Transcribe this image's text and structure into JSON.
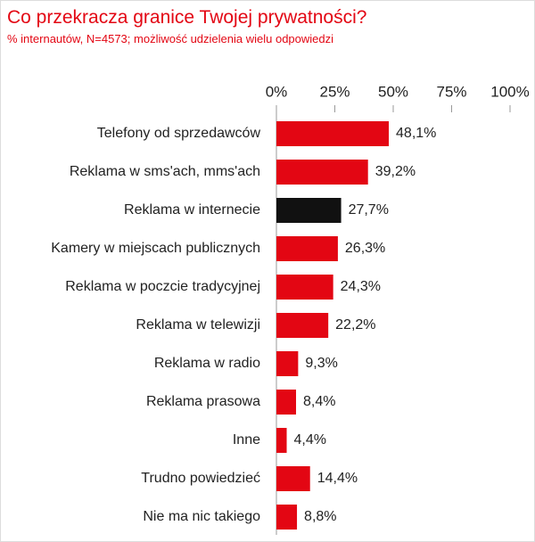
{
  "chart_data": {
    "type": "hbar",
    "title": "Co przekracza granice Twojej prywatności?",
    "subtitle": "% internautów, N=4573; możliwość udzielenia wielu odpowiedzi",
    "categories": [
      "Telefony od sprzedawców",
      "Reklama w sms'ach, mms'ach",
      "Reklama w internecie",
      "Kamery w miejscach publicznych",
      "Reklama w poczcie tradycyjnej",
      "Reklama w telewizji",
      "Reklama w radio",
      "Reklama prasowa",
      "Inne",
      "Trudno powiedzieć",
      "Nie ma nic takiego"
    ],
    "values": [
      48.1,
      39.2,
      27.7,
      26.3,
      24.3,
      22.2,
      9.3,
      8.4,
      4.4,
      14.4,
      8.8
    ],
    "value_labels": [
      "48,1%",
      "39,2%",
      "27,7%",
      "26,3%",
      "24,3%",
      "22,2%",
      "9,3%",
      "8,4%",
      "4,4%",
      "14,4%",
      "8,8%"
    ],
    "colors": [
      "#e30613",
      "#e30613",
      "#111111",
      "#e30613",
      "#e30613",
      "#e30613",
      "#e30613",
      "#e30613",
      "#e30613",
      "#e30613",
      "#e30613"
    ],
    "xlim": [
      0,
      100
    ],
    "xticks": [
      {
        "value": 0,
        "label": "0%"
      },
      {
        "value": 25,
        "label": "25%"
      },
      {
        "value": 50,
        "label": "50%"
      },
      {
        "value": 75,
        "label": "75%"
      },
      {
        "value": 100,
        "label": "100%"
      }
    ]
  }
}
